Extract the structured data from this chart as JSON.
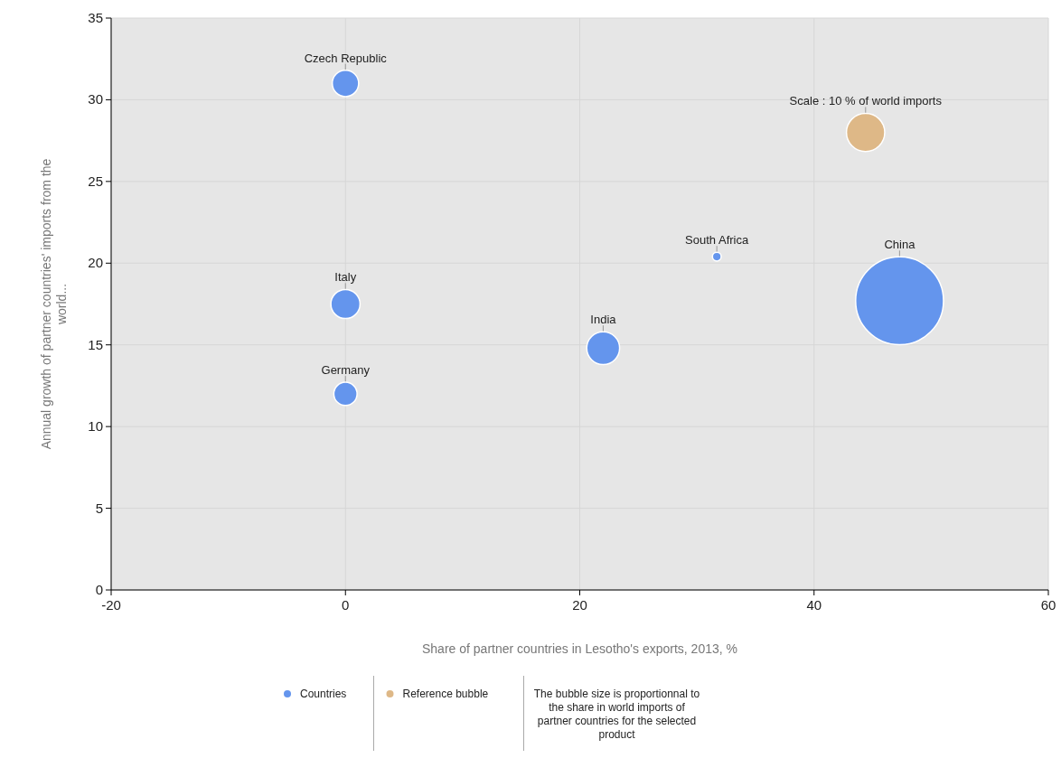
{
  "chart_data": {
    "type": "bubble",
    "xlabel": "Share of partner countries in Lesotho's exports, 2013, %",
    "ylabel": "Annual growth of partner countries' imports from the world...",
    "xlim": [
      -20,
      60
    ],
    "ylim": [
      0,
      35
    ],
    "xticks": [
      -20,
      0,
      20,
      40,
      60
    ],
    "yticks": [
      0,
      5,
      10,
      15,
      20,
      25,
      30,
      35
    ],
    "grid": true,
    "legend": "bottom",
    "marker": "circle",
    "series": [
      {
        "name": "Countries",
        "color": "#6495ed",
        "x": [
          0,
          0,
          0,
          22,
          31.7,
          47.3
        ],
        "values": [
          31,
          17.5,
          12,
          14.8,
          20.4,
          17.7
        ],
        "sizes": [
          0.09,
          0.11,
          0.07,
          0.14,
          0.01,
          1
        ]
      },
      {
        "name": "Reference bubble",
        "color": "#deb887",
        "x": [
          44.4
        ],
        "values": [
          28
        ],
        "sizes": [
          0.19
        ]
      }
    ],
    "annotations": [
      {
        "text": "Czech Republic",
        "x": 0,
        "y": 31
      },
      {
        "text": "Italy",
        "x": 0,
        "y": 17.5
      },
      {
        "text": "Germany",
        "x": 0,
        "y": 12
      },
      {
        "text": "India",
        "x": 22,
        "y": 14.8
      },
      {
        "text": "South Africa",
        "x": 31.7,
        "y": 20.4
      },
      {
        "text": "China",
        "x": 47.3,
        "y": 17.7
      },
      {
        "text": "Scale : 10 % of world imports",
        "x": 44.4,
        "y": 28
      },
      "The bubble size is proportionnal to the share in world imports of partner countries for the selected product"
    ]
  }
}
